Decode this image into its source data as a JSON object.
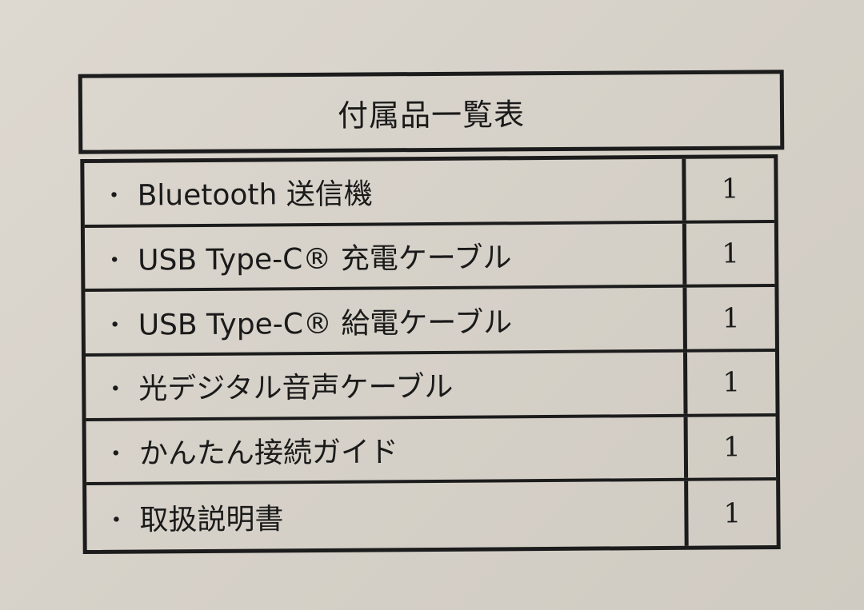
{
  "title": "付属品一覧表",
  "items": [
    {
      "bullet": "・",
      "name": "Bluetooth 送信機",
      "qty": "1"
    },
    {
      "bullet": "・",
      "name": "USB Type-C® 充電ケーブル",
      "qty": "1"
    },
    {
      "bullet": "・",
      "name": "USB Type-C® 給電ケーブル",
      "qty": "1"
    },
    {
      "bullet": "・",
      "name": "光デジタル音声ケーブル",
      "qty": "1"
    },
    {
      "bullet": "・",
      "name": "かんたん接続ガイド",
      "qty": "1"
    },
    {
      "bullet": "・",
      "name": "取扱説明書",
      "qty": "1"
    }
  ]
}
